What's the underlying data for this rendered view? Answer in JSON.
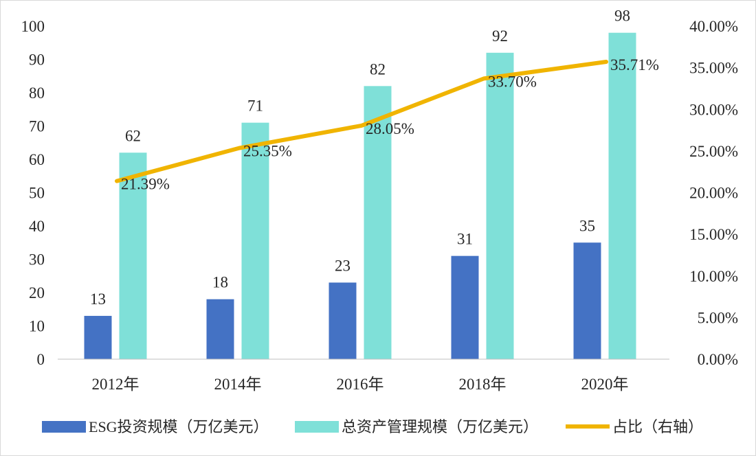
{
  "chart_data": {
    "type": "bar",
    "title": "",
    "categories": [
      "2012年",
      "2014年",
      "2016年",
      "2018年",
      "2020年"
    ],
    "series": [
      {
        "name": "ESG投资规模（万亿美元）",
        "kind": "bar",
        "axis": "left",
        "color": "#4472c4",
        "values": [
          13,
          18,
          23,
          31,
          35
        ]
      },
      {
        "name": "总资产管理规模（万亿美元）",
        "kind": "bar",
        "axis": "left",
        "color": "#7fe0d8",
        "values": [
          62,
          71,
          82,
          92,
          98
        ]
      },
      {
        "name": "占比（右轴）",
        "kind": "line",
        "axis": "right",
        "color": "#f0b400",
        "values": [
          21.39,
          25.35,
          28.05,
          33.7,
          35.71
        ]
      }
    ],
    "bar_labels": [
      [
        "13",
        "18",
        "23",
        "31",
        "35"
      ],
      [
        "62",
        "71",
        "82",
        "92",
        "98"
      ]
    ],
    "line_labels": [
      "21.39%",
      "25.35%",
      "28.05%",
      "33.70%",
      "35.71%"
    ],
    "y_left": {
      "min": 0,
      "max": 100,
      "step": 10,
      "ticks": [
        "0",
        "10",
        "20",
        "30",
        "40",
        "50",
        "60",
        "70",
        "80",
        "90",
        "100"
      ]
    },
    "y_right": {
      "min": 0,
      "max": 40,
      "step": 5,
      "ticks": [
        "0.00%",
        "5.00%",
        "10.00%",
        "15.00%",
        "20.00%",
        "25.00%",
        "30.00%",
        "35.00%",
        "40.00%"
      ]
    },
    "grid": false,
    "legend_position": "bottom"
  }
}
